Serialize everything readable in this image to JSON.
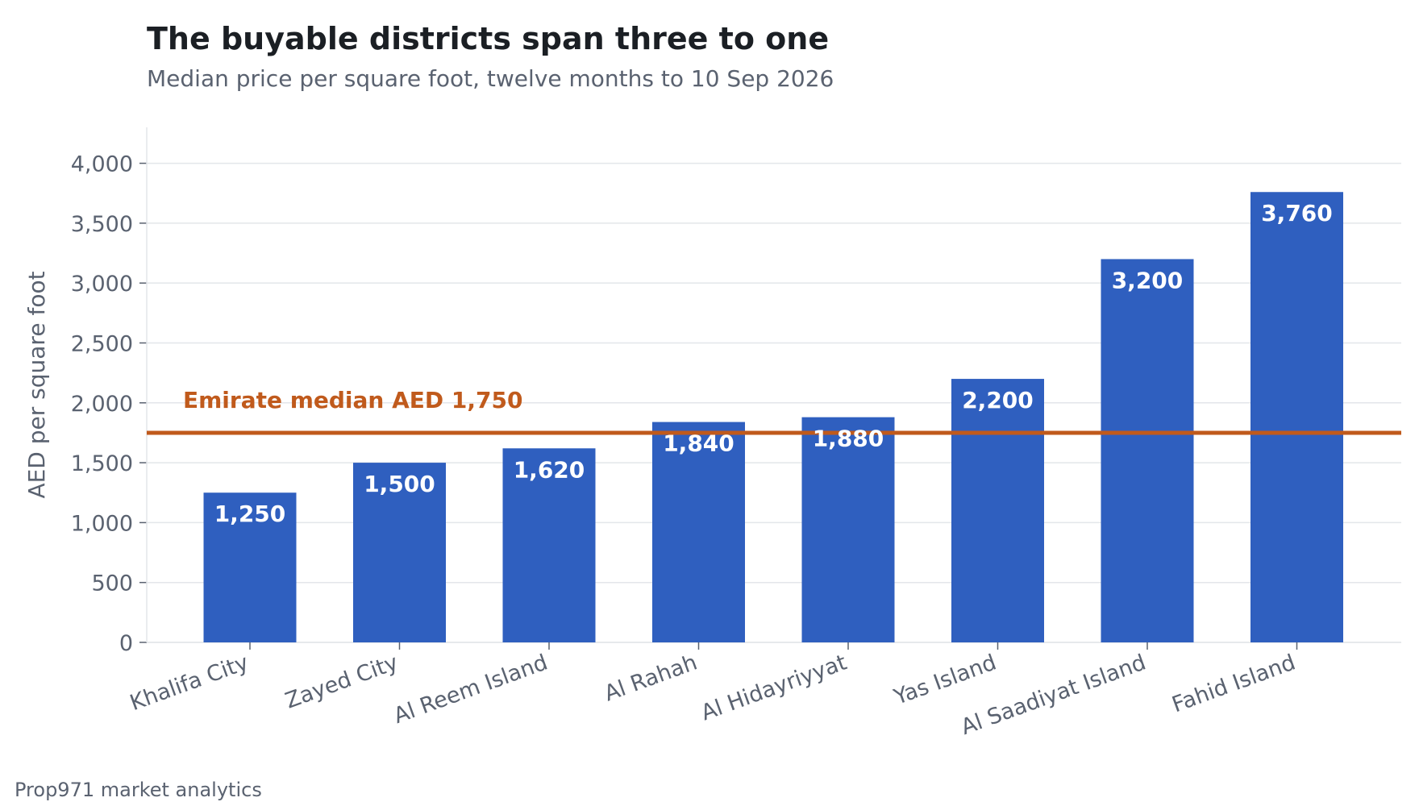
{
  "chart_data": {
    "type": "bar",
    "title": "The buyable districts span three to one",
    "subtitle": "Median price per square foot, twelve months to 10 Sep 2026",
    "source": "Prop971 market analytics",
    "xlabel": "",
    "ylabel": "AED per square foot",
    "ylim": [
      0,
      4300
    ],
    "yticks": [
      0,
      500,
      1000,
      1500,
      2000,
      2500,
      3000,
      3500,
      4000
    ],
    "ytick_labels": [
      "0",
      "500",
      "1,000",
      "1,500",
      "2,000",
      "2,500",
      "3,000",
      "3,500",
      "4,000"
    ],
    "grid": "horizontal",
    "categories": [
      "Khalifa City",
      "Zayed City",
      "Al Reem Island",
      "Al Rahah",
      "Al Hidayriyyat",
      "Yas Island",
      "Al Saadiyat Island",
      "Fahid Island"
    ],
    "values": [
      1250,
      1500,
      1620,
      1840,
      1880,
      2200,
      3200,
      3760
    ],
    "data_labels": [
      "1,250",
      "1,500",
      "1,620",
      "1,840",
      "1,880",
      "2,200",
      "3,200",
      "3,760"
    ],
    "reference_line": {
      "value": 1750,
      "label": "Emirate median AED 1,750"
    },
    "colors": {
      "bar": "#2f5fbf",
      "reference": "#c05a1c",
      "grid": "#e3e6ea",
      "axis": "#5a6270"
    }
  }
}
